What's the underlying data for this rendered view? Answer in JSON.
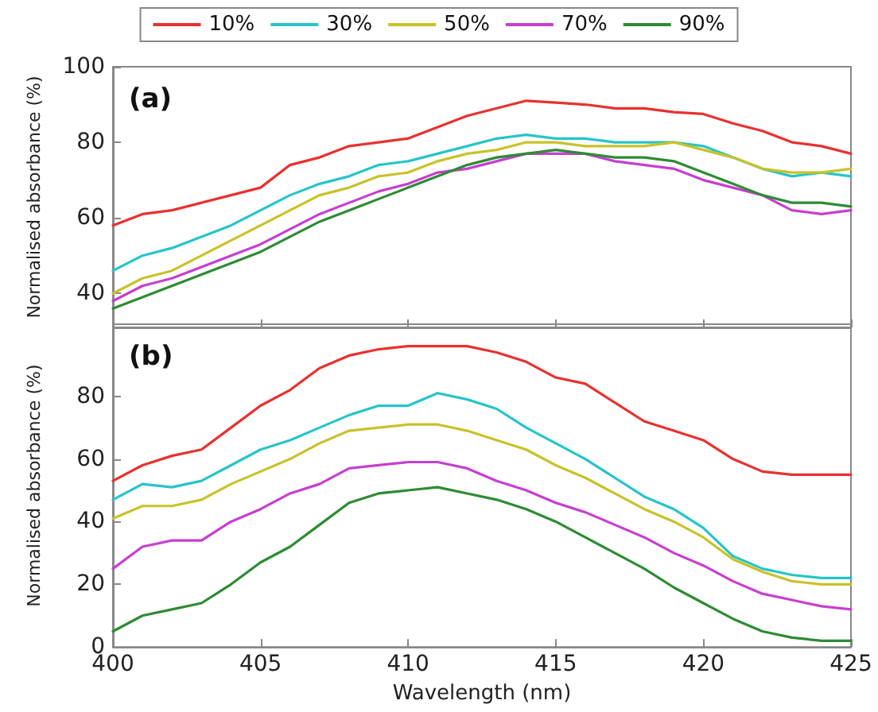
{
  "chart_data": [
    {
      "type": "line",
      "ylabel": "Normalised absorbance (%)",
      "annotations": [
        "(a)"
      ],
      "legend": "top",
      "grid": false,
      "tick_labels": "y",
      "line_style": "solid",
      "marker": "none",
      "x": [
        400,
        401,
        402,
        403,
        404,
        405,
        406,
        407,
        408,
        409,
        410,
        411,
        412,
        413,
        414,
        415,
        416,
        417,
        418,
        419,
        420,
        421,
        422,
        423,
        424,
        425
      ],
      "xlim": [
        400,
        425
      ],
      "xticks": [
        400,
        405,
        410,
        415,
        420,
        425
      ],
      "ylim": [
        31,
        100
      ],
      "yticks": [
        40,
        60,
        80,
        100
      ],
      "series": [
        {
          "name": "10%",
          "color": "#e8312f",
          "values": [
            58,
            61,
            62,
            64,
            66,
            68,
            74,
            76,
            79,
            80,
            81,
            84,
            87,
            89,
            91,
            90.5,
            90,
            89,
            89,
            88,
            87.5,
            85,
            83,
            80,
            79,
            77
          ]
        },
        {
          "name": "30%",
          "color": "#27c4c9",
          "values": [
            46,
            50,
            52,
            55,
            58,
            62,
            66,
            69,
            71,
            74,
            75,
            77,
            79,
            81,
            82,
            81,
            81,
            80,
            80,
            80,
            79,
            76,
            73,
            71,
            72,
            71
          ]
        },
        {
          "name": "50%",
          "color": "#c8c22a",
          "values": [
            40,
            44,
            46,
            50,
            54,
            58,
            62,
            66,
            68,
            71,
            72,
            75,
            77,
            78,
            80,
            80,
            79,
            79,
            79,
            80,
            78,
            76,
            73,
            72,
            72,
            73
          ]
        },
        {
          "name": "70%",
          "color": "#c63fd0",
          "values": [
            38,
            42,
            44,
            47,
            50,
            53,
            57,
            61,
            64,
            67,
            69,
            72,
            73,
            75,
            77,
            77,
            77,
            75,
            74,
            73,
            70,
            68,
            66,
            62,
            61,
            62
          ]
        },
        {
          "name": "90%",
          "color": "#2e8b34",
          "values": [
            36,
            39,
            42,
            45,
            48,
            51,
            55,
            59,
            62,
            65,
            68,
            71,
            74,
            76,
            77,
            78,
            77,
            76,
            76,
            75,
            72,
            69,
            66,
            64,
            64,
            63
          ]
        }
      ]
    },
    {
      "type": "line",
      "xlabel": "Wavelength (nm)",
      "ylabel": "Normalised absorbance (%)",
      "annotations": [
        "(b)"
      ],
      "grid": false,
      "line_style": "solid",
      "marker": "none",
      "x": [
        400,
        401,
        402,
        403,
        404,
        405,
        406,
        407,
        408,
        409,
        410,
        411,
        412,
        413,
        414,
        415,
        416,
        417,
        418,
        419,
        420,
        421,
        422,
        423,
        424,
        425
      ],
      "xlim": [
        400,
        425
      ],
      "xticks": [
        400,
        405,
        410,
        415,
        420,
        425
      ],
      "ylim": [
        0,
        103
      ],
      "yticks": [
        0,
        20,
        40,
        60,
        80
      ],
      "series": [
        {
          "color": "#e8312f",
          "values": [
            53,
            58,
            61,
            63,
            70,
            77,
            82,
            89,
            93,
            95,
            96,
            96,
            96,
            94,
            91,
            86,
            84,
            78,
            72,
            69,
            66,
            60,
            56,
            55,
            55,
            55
          ]
        },
        {
          "color": "#27c4c9",
          "values": [
            47,
            52,
            51,
            53,
            58,
            63,
            66,
            70,
            74,
            77,
            77,
            81,
            79,
            76,
            70,
            65,
            60,
            54,
            48,
            44,
            38,
            29,
            25,
            23,
            22,
            22
          ]
        },
        {
          "color": "#c8c22a",
          "values": [
            41,
            45,
            45,
            47,
            52,
            56,
            60,
            65,
            69,
            70,
            71,
            71,
            69,
            66,
            63,
            58,
            54,
            49,
            44,
            40,
            35,
            28,
            24,
            21,
            20,
            20
          ]
        },
        {
          "color": "#c63fd0",
          "values": [
            25,
            32,
            34,
            34,
            40,
            44,
            49,
            52,
            57,
            58,
            59,
            59,
            57,
            53,
            50,
            46,
            43,
            39,
            35,
            30,
            26,
            21,
            17,
            15,
            13,
            12
          ]
        },
        {
          "color": "#2e8b34",
          "values": [
            5,
            10,
            12,
            14,
            20,
            27,
            32,
            39,
            46,
            49,
            50,
            51,
            49,
            47,
            44,
            40,
            35,
            30,
            25,
            19,
            14,
            9,
            5,
            3,
            2,
            2
          ]
        }
      ]
    }
  ]
}
